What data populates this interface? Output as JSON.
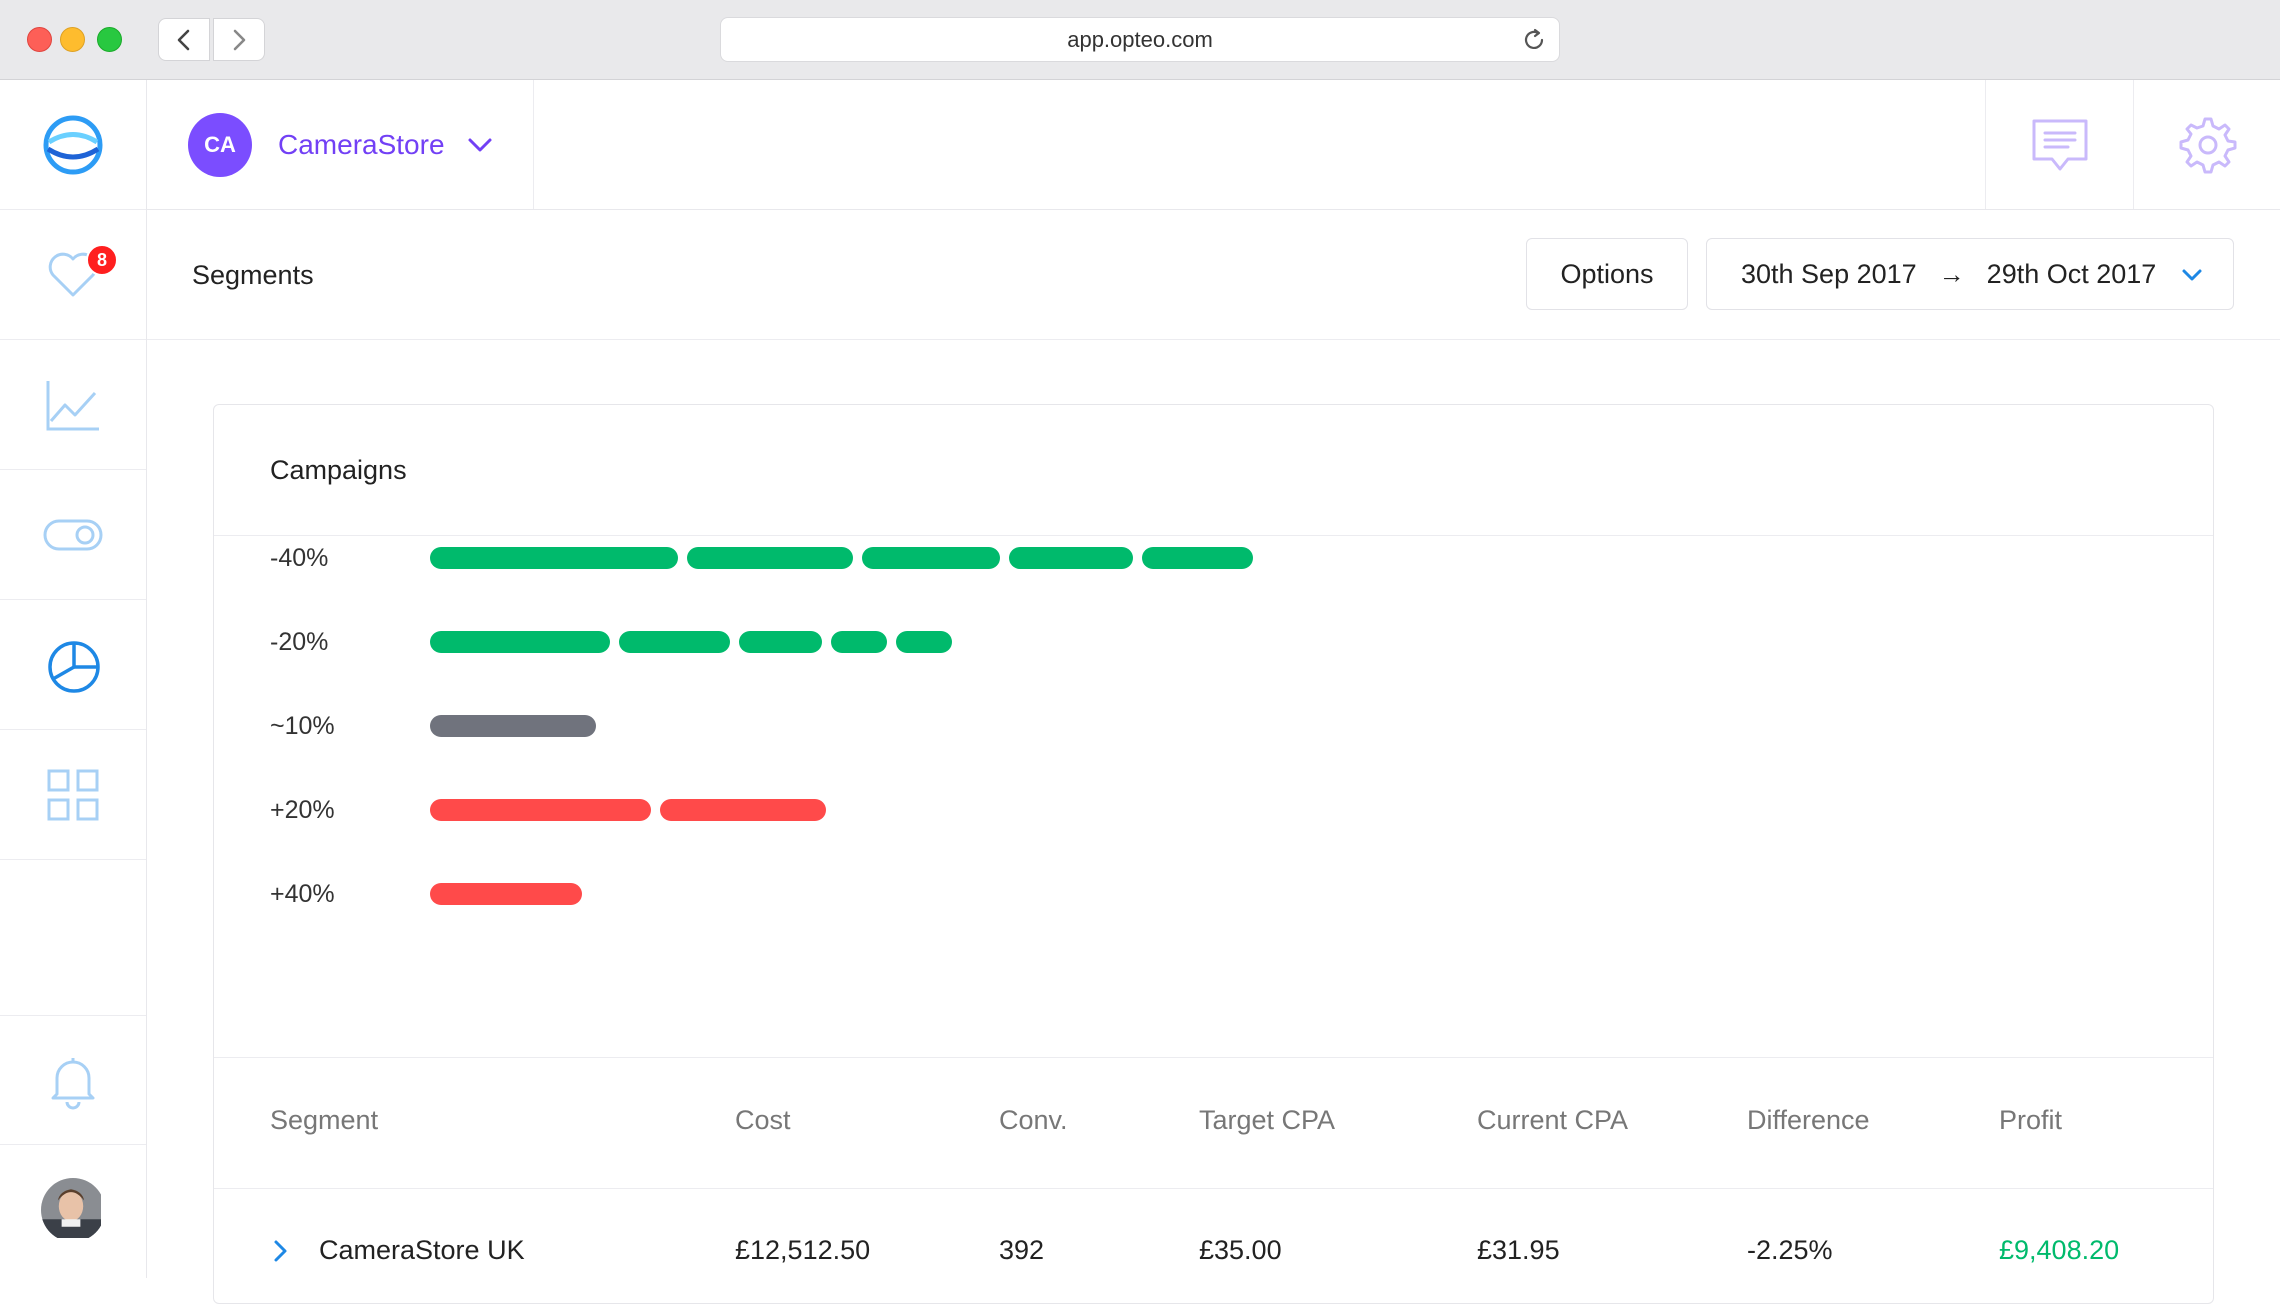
{
  "browser": {
    "url": "app.opteo.com"
  },
  "sidebar": {
    "items": [
      {
        "name": "logo",
        "icon": "opteo-logo-icon"
      },
      {
        "name": "improvements",
        "icon": "heart-icon",
        "badge": "8"
      },
      {
        "name": "performance",
        "icon": "line-chart-icon"
      },
      {
        "name": "toggles",
        "icon": "toggle-icon"
      },
      {
        "name": "segments",
        "icon": "pie-chart-icon"
      },
      {
        "name": "tools",
        "icon": "grid-icon"
      },
      {
        "name": "notifications",
        "icon": "bell-icon"
      },
      {
        "name": "profile",
        "icon": "avatar"
      }
    ]
  },
  "header": {
    "account_initials": "CA",
    "account_name": "CameraStore",
    "chat_icon": "message-icon",
    "settings_icon": "gear-icon"
  },
  "subheader": {
    "title": "Segments",
    "options_label": "Options",
    "date_from": "30th Sep 2017",
    "date_arrow": "→",
    "date_to": "29th Oct 2017"
  },
  "card": {
    "title": "Campaigns"
  },
  "chart_data": {
    "type": "bar",
    "categories": [
      "-40%",
      "-20%",
      "~10%",
      "+20%",
      "+40%"
    ],
    "colors": {
      "-40%": "#00ba6c",
      "-20%": "#00ba6c",
      "~10%": "#70737d",
      "+20%": "#ff4a4a",
      "+40%": "#ff4a4a"
    },
    "segments": [
      [
        248,
        166,
        138,
        124,
        111
      ],
      [
        180,
        111,
        83,
        56,
        56
      ],
      [
        166
      ],
      [
        221,
        166
      ],
      [
        152
      ]
    ]
  },
  "table": {
    "columns": [
      "Segment",
      "Cost",
      "Conv.",
      "Target CPA",
      "Current CPA",
      "Difference",
      "Profit"
    ],
    "rows": [
      {
        "segment": "CameraStore UK",
        "cost": "£12,512.50",
        "conv": "392",
        "target_cpa": "£35.00",
        "current_cpa": "£31.95",
        "difference": "-2.25%",
        "profit": "£9,408.20",
        "profit_color": "#00ba6c"
      }
    ]
  },
  "colors": {
    "accent": "#7240f5",
    "sidebar_icon": "#a7d0f5",
    "sidebar_icon_active": "#1e88e5"
  }
}
